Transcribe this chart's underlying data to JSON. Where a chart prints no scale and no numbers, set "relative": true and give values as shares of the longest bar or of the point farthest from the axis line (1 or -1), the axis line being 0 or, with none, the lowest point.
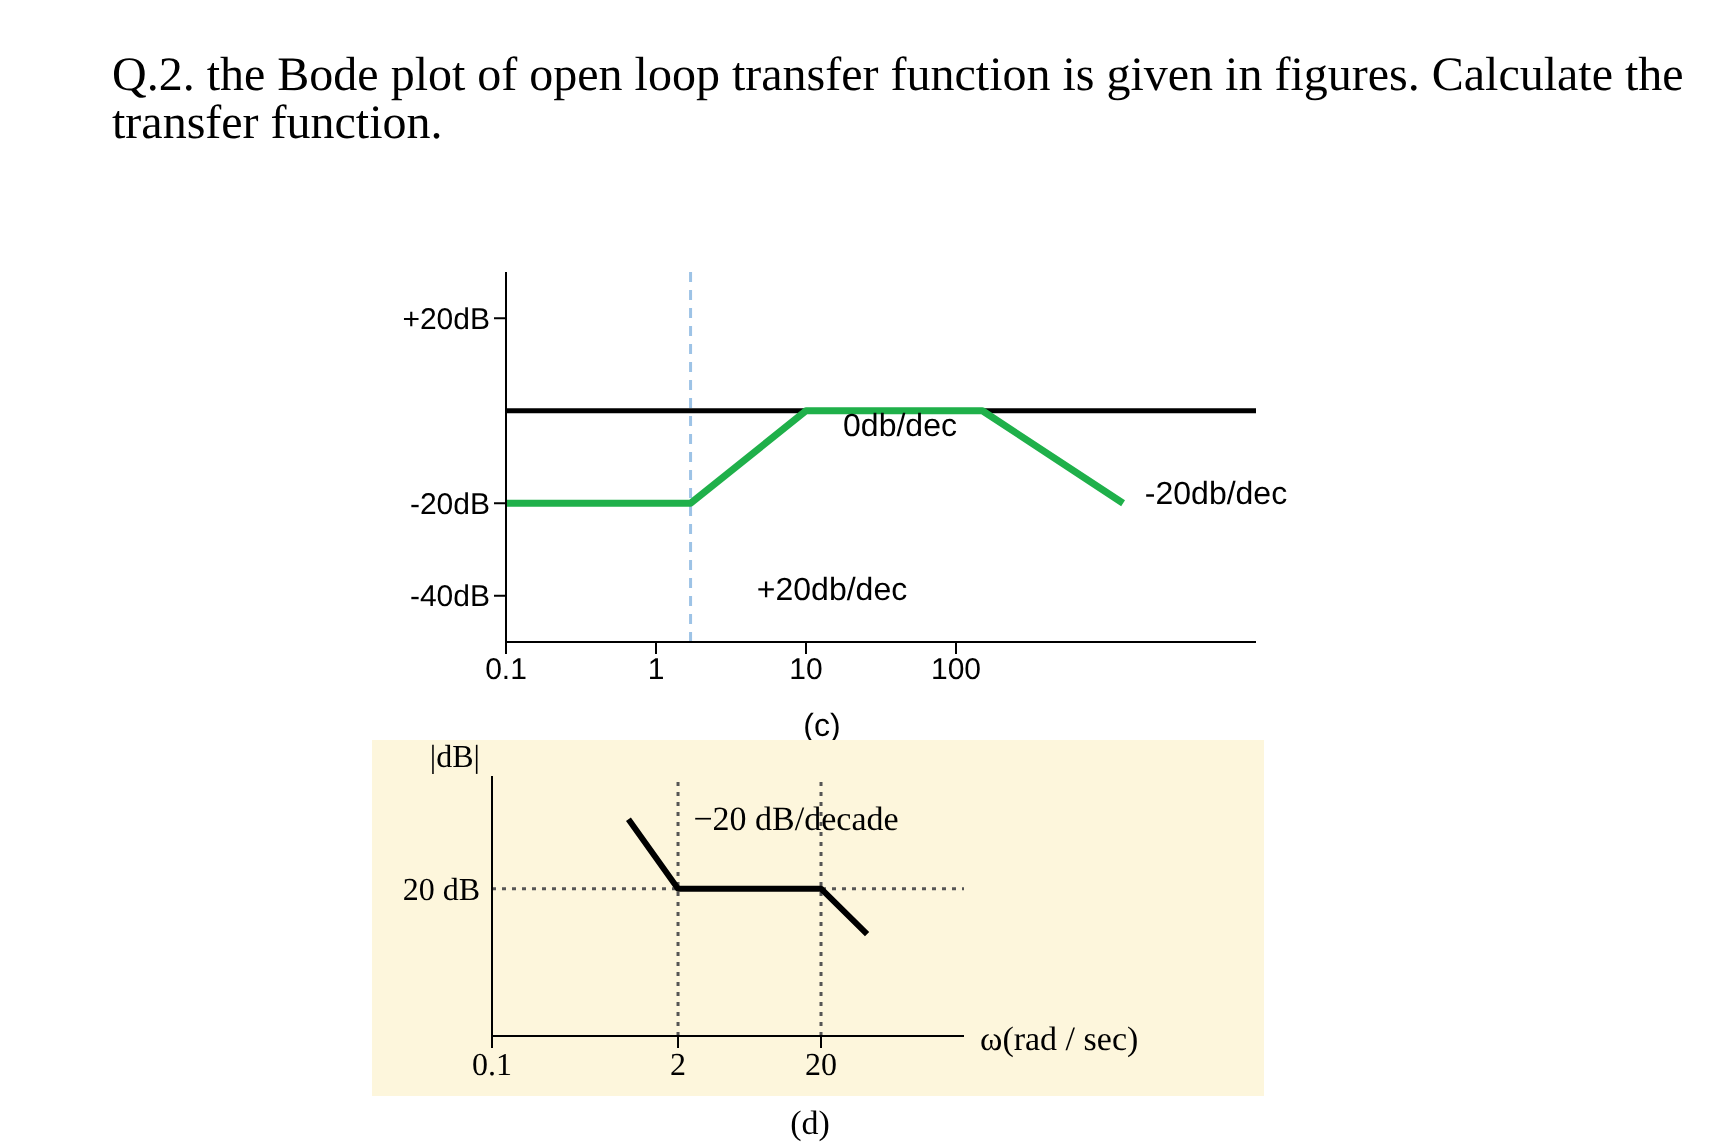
{
  "chart_data": [
    {
      "type": "line",
      "title": "Q.2. the Bode plot of open loop transfer function is given in figures. Calculate the transfer function.",
      "log": "x",
      "x": [
        0.1,
        1.7,
        10,
        150,
        1300
      ],
      "values": [
        -20,
        -20,
        0,
        0,
        -20
      ],
      "color": "#1fb04a",
      "xlim": [
        0.1,
        10000
      ],
      "xticks": [
        0.1,
        1,
        10,
        100
      ],
      "ylim": [
        -50,
        30
      ],
      "yticks": [
        {
          "value": 20,
          "label": "+20dB"
        },
        {
          "value": -20,
          "label": "-20dB"
        },
        {
          "value": -40,
          "label": "-40dB"
        }
      ],
      "ref_lines": [
        {
          "axis": "y",
          "value": 0,
          "color": "#000000",
          "line_style": "solid"
        },
        {
          "axis": "x",
          "value": 1.7,
          "color": "#9dc3e6",
          "line_style": "dashed"
        }
      ],
      "annotations": [
        "0db/dec",
        "+20db/dec",
        "-20db/dec",
        "(c)"
      ]
    },
    {
      "type": "line",
      "relative": true,
      "log": "x",
      "x": [
        0.9,
        2,
        20,
        42
      ],
      "values": [
        1,
        0.68,
        0.68,
        0.47
      ],
      "color": "#000000",
      "xlim": [
        0.1,
        200
      ],
      "xticks": [
        0.1,
        2,
        20
      ],
      "xlabel": "ω(rad / sec)",
      "ylabel": "|dB|",
      "ref_lines": [
        {
          "axis": "y",
          "value": 0.68,
          "label": "20 dB",
          "color": "#555555",
          "line_style": "dotted"
        },
        {
          "axis": "x",
          "value": 2,
          "color": "#555555",
          "line_style": "dotted"
        },
        {
          "axis": "x",
          "value": 20,
          "color": "#555555",
          "line_style": "dotted"
        }
      ],
      "annotations": [
        "−20 dB/decade",
        "(d)"
      ]
    }
  ]
}
